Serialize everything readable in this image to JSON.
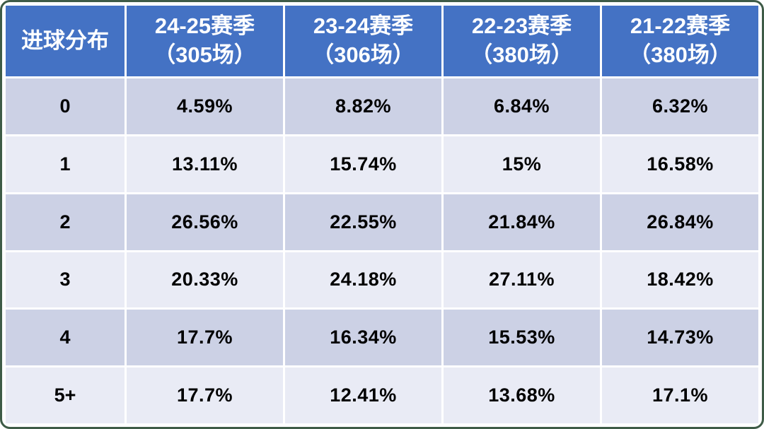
{
  "table": {
    "corner_label": "进球分布",
    "columns": [
      {
        "line1": "24-25赛季",
        "line2": "（305场）"
      },
      {
        "line1": "23-24赛季",
        "line2": "（306场）"
      },
      {
        "line1": "22-23赛季",
        "line2": "（380场）"
      },
      {
        "line1": "21-22赛季",
        "line2": "（380场）"
      }
    ],
    "rows": [
      {
        "goals": "0",
        "values": [
          "4.59%",
          "8.82%",
          "6.84%",
          "6.32%"
        ]
      },
      {
        "goals": "1",
        "values": [
          "13.11%",
          "15.74%",
          "15%",
          "16.58%"
        ]
      },
      {
        "goals": "2",
        "values": [
          "26.56%",
          "22.55%",
          "21.84%",
          "26.84%"
        ]
      },
      {
        "goals": "3",
        "values": [
          "20.33%",
          "24.18%",
          "27.11%",
          "18.42%"
        ]
      },
      {
        "goals": "4",
        "values": [
          "17.7%",
          "16.34%",
          "15.53%",
          "14.73%"
        ]
      },
      {
        "goals": "5+",
        "values": [
          "17.7%",
          "12.41%",
          "13.68%",
          "17.1%"
        ]
      }
    ],
    "colors": {
      "header_bg": "#4472C4",
      "header_text": "#FFFFFF",
      "row_dark": "#CCD1E5",
      "row_light": "#E9EBF5",
      "cell_text": "#000000",
      "frame_border": "#3E5B47"
    }
  },
  "chart_data": {
    "type": "table",
    "title": "进球分布",
    "categories": [
      "0",
      "1",
      "2",
      "3",
      "4",
      "5+"
    ],
    "series": [
      {
        "name": "24-25赛季（305场）",
        "values": [
          4.59,
          13.11,
          26.56,
          20.33,
          17.7,
          17.7
        ]
      },
      {
        "name": "23-24赛季（306场）",
        "values": [
          8.82,
          15.74,
          22.55,
          24.18,
          16.34,
          12.41
        ]
      },
      {
        "name": "22-23赛季（380场）",
        "values": [
          6.84,
          15.0,
          21.84,
          27.11,
          15.53,
          13.68
        ]
      },
      {
        "name": "21-22赛季（380场）",
        "values": [
          6.32,
          16.58,
          26.84,
          18.42,
          14.73,
          17.1
        ]
      }
    ],
    "value_unit": "%",
    "legend_position": "none",
    "grid": "white-gaps-between-cells"
  }
}
